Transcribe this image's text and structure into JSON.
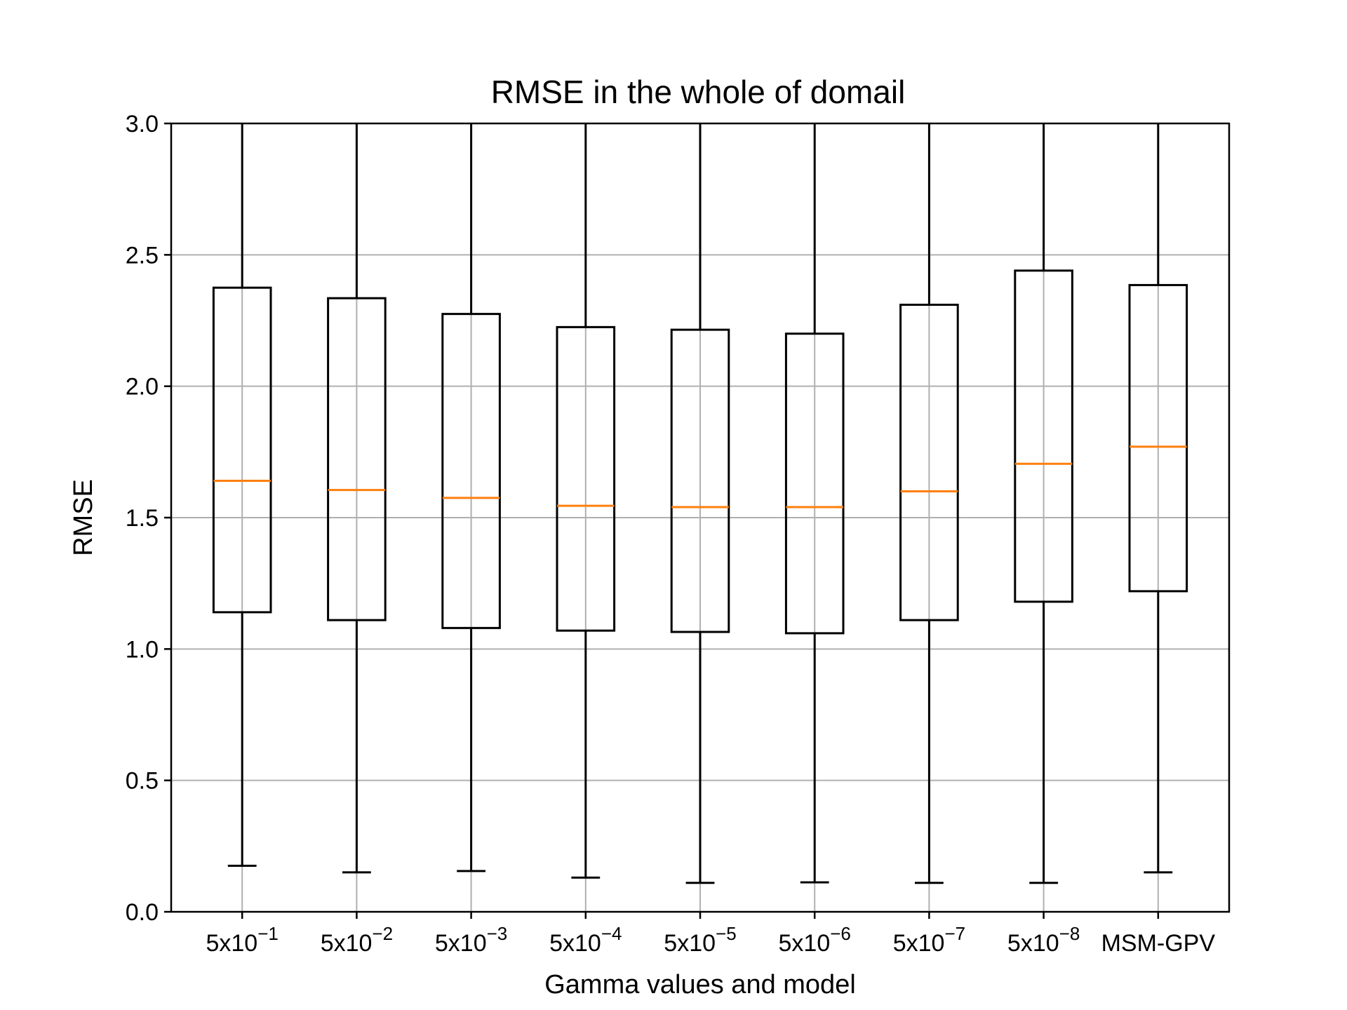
{
  "chart_data": {
    "type": "box",
    "title": "RMSE in the whole of domail",
    "xlabel": "Gamma values and model",
    "ylabel": "RMSE",
    "ylim": [
      0.0,
      3.0
    ],
    "yticks": [
      "0.0",
      "0.5",
      "1.0",
      "1.5",
      "2.0",
      "2.5",
      "3.0"
    ],
    "ytick_values": [
      0.0,
      0.5,
      1.0,
      1.5,
      2.0,
      2.5,
      3.0
    ],
    "grid": true,
    "colors": {
      "box": "#000000",
      "median": "#ff7f0e",
      "grid": "#b0b0b0"
    },
    "categories": [
      {
        "base": "5x10",
        "exp": "−1"
      },
      {
        "base": "5x10",
        "exp": "−2"
      },
      {
        "base": "5x10",
        "exp": "−3"
      },
      {
        "base": "5x10",
        "exp": "−4"
      },
      {
        "base": "5x10",
        "exp": "−5"
      },
      {
        "base": "5x10",
        "exp": "−6"
      },
      {
        "base": "5x10",
        "exp": "−7"
      },
      {
        "base": "5x10",
        "exp": "−8"
      },
      {
        "base": "MSM-GPV",
        "exp": ""
      }
    ],
    "boxes": [
      {
        "whislo": 0.175,
        "q1": 1.14,
        "med": 1.64,
        "q3": 2.375,
        "whishi": 3.0
      },
      {
        "whislo": 0.15,
        "q1": 1.11,
        "med": 1.605,
        "q3": 2.335,
        "whishi": 3.0
      },
      {
        "whislo": 0.155,
        "q1": 1.08,
        "med": 1.575,
        "q3": 2.275,
        "whishi": 3.0
      },
      {
        "whislo": 0.13,
        "q1": 1.07,
        "med": 1.545,
        "q3": 2.225,
        "whishi": 3.0
      },
      {
        "whislo": 0.11,
        "q1": 1.065,
        "med": 1.54,
        "q3": 2.215,
        "whishi": 3.0
      },
      {
        "whislo": 0.112,
        "q1": 1.06,
        "med": 1.54,
        "q3": 2.2,
        "whishi": 3.0
      },
      {
        "whislo": 0.11,
        "q1": 1.11,
        "med": 1.6,
        "q3": 2.31,
        "whishi": 3.0
      },
      {
        "whislo": 0.11,
        "q1": 1.18,
        "med": 1.705,
        "q3": 2.44,
        "whishi": 3.0
      },
      {
        "whislo": 0.15,
        "q1": 1.22,
        "med": 1.77,
        "q3": 2.385,
        "whishi": 3.0
      }
    ]
  }
}
